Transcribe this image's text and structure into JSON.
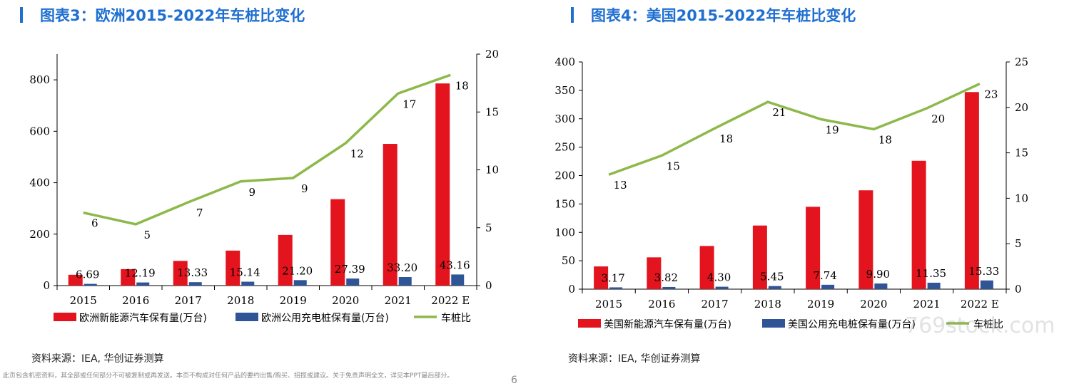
{
  "charts_meta": {
    "left": {
      "title": "图表3：欧洲2015-2022年车桩比变化",
      "source": "资料来源：IEA, 华创证券测算"
    },
    "right": {
      "title": "图表4：美国2015-2022年车桩比变化",
      "source": "资料来源：IEA, 华创证券测算"
    }
  },
  "footer": {
    "disclaimer": "此页包含机密资料，其全部或任何部分不可被复制或再发送。本页不构成对任何产品的要约出售/购买、招揽或建议。关于免责声明全文，详见本PPT最后部分。",
    "page_number": "6",
    "watermark": "769stock.com"
  },
  "colors": {
    "title": "#1f6fd1",
    "ev_bar": "#e3141e",
    "charger_bar": "#2f5597",
    "ratio_line": "#8db94a"
  },
  "chart_data": [
    {
      "type": "bar",
      "categories": [
        "2015",
        "2016",
        "2017",
        "2018",
        "2019",
        "2020",
        "2021",
        "2022 E"
      ],
      "series": [
        {
          "name": "欧洲新能源汽车保有量(万台)",
          "type": "bar",
          "axis": "left",
          "values": [
            42,
            64,
            96,
            136,
            197,
            336,
            551,
            786
          ]
        },
        {
          "name": "欧洲公用充电桩保有量(万台)",
          "type": "bar",
          "axis": "left",
          "values": [
            6.69,
            12.19,
            13.33,
            15.14,
            21.2,
            27.39,
            33.2,
            43.16
          ],
          "labels": [
            "6.69",
            "12.19",
            "13.33",
            "15.14",
            "21.20",
            "27.39",
            "33.20",
            "43.16"
          ]
        },
        {
          "name": "车桩比",
          "type": "line",
          "axis": "right",
          "values": [
            6.3,
            5.3,
            7.2,
            9.0,
            9.3,
            12.3,
            16.6,
            18.2
          ],
          "labels": [
            "6",
            "5",
            "7",
            "9",
            "9",
            "12",
            "17",
            "18"
          ]
        }
      ],
      "ylim": [
        0,
        900
      ],
      "yticks": [
        "0",
        "200",
        "400",
        "600",
        "800"
      ],
      "y2lim": [
        0,
        20
      ],
      "y2ticks": [
        "0",
        "5",
        "10",
        "15",
        "20"
      ],
      "legend": "bottom"
    },
    {
      "type": "bar",
      "categories": [
        "2015",
        "2016",
        "2017",
        "2018",
        "2019",
        "2020",
        "2021",
        "2022 E"
      ],
      "series": [
        {
          "name": "美国新能源汽车保有量(万台)",
          "type": "bar",
          "axis": "left",
          "values": [
            40,
            56,
            76,
            112,
            145,
            174,
            226,
            347
          ]
        },
        {
          "name": "美国公用充电桩保有量(万台)",
          "type": "bar",
          "axis": "left",
          "values": [
            3.17,
            3.82,
            4.3,
            5.45,
            7.74,
            9.9,
            11.35,
            15.33
          ],
          "labels": [
            "3.17",
            "3.82",
            "4.30",
            "5.45",
            "7.74",
            "9.90",
            "11.35",
            "15.33"
          ]
        },
        {
          "name": "车桩比",
          "type": "line",
          "axis": "right",
          "values": [
            12.6,
            14.7,
            17.7,
            20.6,
            18.7,
            17.6,
            19.9,
            22.6
          ],
          "labels": [
            "13",
            "15",
            "18",
            "21",
            "19",
            "18",
            "20",
            "23"
          ]
        }
      ],
      "ylim": [
        0,
        400
      ],
      "yticks": [
        "0",
        "50",
        "100",
        "150",
        "200",
        "250",
        "300",
        "350",
        "400"
      ],
      "y2lim": [
        0,
        25
      ],
      "y2ticks": [
        "0",
        "5",
        "10",
        "15",
        "20",
        "25"
      ],
      "legend": "bottom"
    }
  ]
}
